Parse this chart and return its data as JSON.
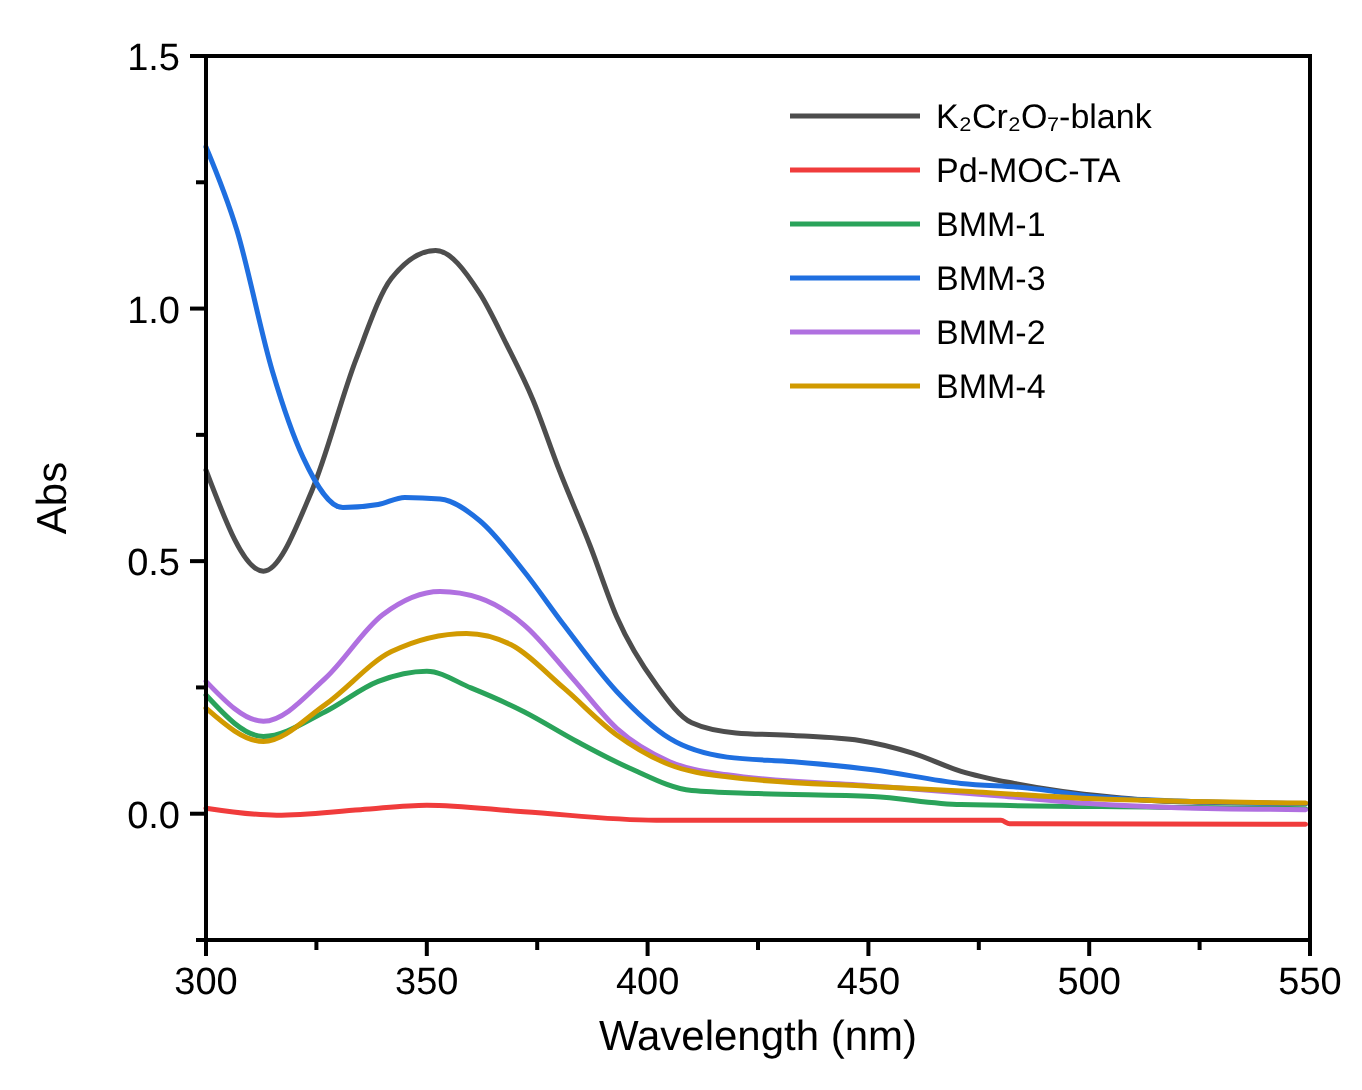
{
  "chart_data": {
    "type": "line",
    "xlabel": "Wavelength (nm)",
    "ylabel": "Abs",
    "xlim": [
      300,
      550
    ],
    "ylim": [
      -0.25,
      1.5
    ],
    "xticks": [
      300,
      {
        "value": 325,
        "label": null
      },
      350,
      {
        "value": 375,
        "label": null
      },
      400,
      {
        "value": 425,
        "label": null
      },
      450,
      {
        "value": 475,
        "label": null
      },
      500,
      {
        "value": 525,
        "label": null
      },
      550
    ],
    "yticks": [
      {
        "value": -0.25,
        "label": null
      },
      {
        "value": 0,
        "label": "0.0"
      },
      {
        "value": 0.25,
        "label": null
      },
      {
        "value": 0.5,
        "label": "0.5"
      },
      {
        "value": 0.75,
        "label": null
      },
      {
        "value": 1,
        "label": "1.0"
      },
      {
        "value": 1.25,
        "label": null
      },
      {
        "value": 1.5,
        "label": "1.5"
      }
    ],
    "grid": false,
    "legend": "top right",
    "line_style": "solid",
    "marker": "none",
    "series": [
      {
        "name": "K₂Cr₂O₇-blank",
        "color": "#4d4d4d",
        "x": [
          300,
          313,
          324,
          334,
          342,
          352,
          362,
          368,
          374,
          380,
          387,
          393,
          402,
          410,
          420,
          433,
          448,
          460,
          471,
          483,
          494,
          505,
          516,
          530,
          549
        ],
        "values": [
          0.68,
          0.48,
          0.64,
          0.9,
          1.06,
          1.115,
          1.03,
          0.93,
          0.82,
          0.68,
          0.53,
          0.39,
          0.255,
          0.18,
          0.16,
          0.155,
          0.145,
          0.12,
          0.084,
          0.06,
          0.044,
          0.033,
          0.025,
          0.022,
          0.02
        ]
      },
      {
        "name": "Pd-MOC-TA",
        "color": "#f03c3c",
        "x": [
          300,
          316,
          335,
          350,
          372,
          402,
          451,
          480,
          482,
          549
        ],
        "values": [
          0.011,
          -0.003,
          0.008,
          0.017,
          0.004,
          -0.013,
          -0.013,
          -0.013,
          -0.02,
          -0.021
        ]
      },
      {
        "name": "BMM-1",
        "color": "#2aa35a",
        "x": [
          300,
          313,
          327,
          339,
          350,
          360,
          372,
          384,
          396,
          410,
          425,
          451,
          471,
          516,
          549
        ],
        "values": [
          0.235,
          0.153,
          0.202,
          0.262,
          0.282,
          0.249,
          0.202,
          0.143,
          0.09,
          0.046,
          0.04,
          0.034,
          0.018,
          0.013,
          0.01
        ]
      },
      {
        "name": "BMM-3",
        "color": "#1f6fe0",
        "x": [
          300,
          307,
          315,
          322,
          331,
          339,
          345,
          353,
          362,
          372,
          381,
          393,
          405,
          418,
          433,
          451,
          471,
          486,
          501,
          520,
          549
        ],
        "values": [
          1.32,
          1.155,
          0.877,
          0.705,
          0.606,
          0.612,
          0.626,
          0.623,
          0.58,
          0.48,
          0.374,
          0.242,
          0.149,
          0.112,
          0.103,
          0.087,
          0.06,
          0.051,
          0.034,
          0.025,
          0.02
        ]
      },
      {
        "name": "BMM-2",
        "color": "#b070e0",
        "x": [
          300,
          313,
          327,
          340,
          353,
          362,
          372,
          383,
          393,
          405,
          418,
          451,
          480,
          500,
          520,
          549
        ],
        "values": [
          0.262,
          0.183,
          0.268,
          0.394,
          0.44,
          0.427,
          0.374,
          0.268,
          0.169,
          0.103,
          0.077,
          0.055,
          0.035,
          0.02,
          0.012,
          0.008
        ]
      },
      {
        "name": "BMM-4",
        "color": "#d19a00",
        "x": [
          300,
          313,
          327,
          342,
          359,
          369,
          381,
          393,
          405,
          418,
          451,
          471,
          500,
          549
        ],
        "values": [
          0.209,
          0.143,
          0.216,
          0.321,
          0.357,
          0.335,
          0.249,
          0.156,
          0.097,
          0.073,
          0.054,
          0.045,
          0.03,
          0.021
        ]
      }
    ]
  }
}
